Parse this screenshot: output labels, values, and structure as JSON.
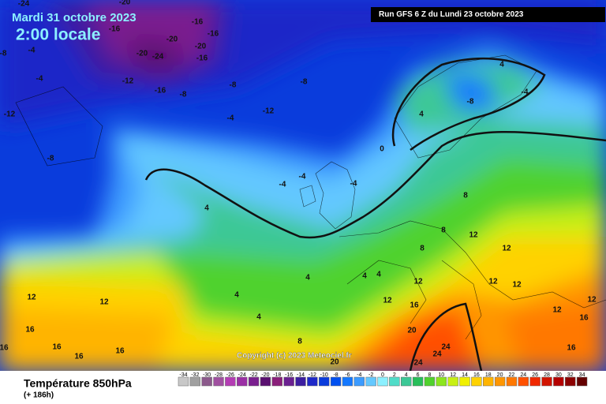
{
  "header": {
    "date": "Mardi 31 octobre 2023",
    "time": "2:00 locale",
    "run": "Run GFS 6 Z du Lundi 23 octobre 2023",
    "copyright": "Copyright (c) 2023 Meteociel.fr"
  },
  "footer": {
    "title": "Température 850hPa",
    "lead": "(+ 186h)"
  },
  "colorbar": {
    "ticks": [
      -34,
      -32,
      -30,
      -28,
      -26,
      -24,
      -22,
      -20,
      -18,
      -16,
      -14,
      -12,
      -10,
      -8,
      -6,
      -4,
      -2,
      0,
      2,
      4,
      6,
      8,
      10,
      12,
      14,
      16,
      18,
      20,
      22,
      24,
      26,
      28,
      30,
      32,
      34
    ],
    "colors": [
      "#c8c8c8",
      "#a0a0a0",
      "#8c5a8c",
      "#a050a0",
      "#b43cb4",
      "#9b2fa5",
      "#7a1f8f",
      "#5a1070",
      "#8a1f7a",
      "#6a2090",
      "#3c1ea0",
      "#1e28c8",
      "#0a3cdc",
      "#0050f0",
      "#1478ff",
      "#3c9bff",
      "#64c8ff",
      "#8cf0ff",
      "#50dcc8",
      "#3cc896",
      "#28be5a",
      "#50d22d",
      "#8ce61e",
      "#c8f014",
      "#f0f000",
      "#ffd200",
      "#ffb400",
      "#ff9600",
      "#ff7800",
      "#ff5000",
      "#f02800",
      "#d21400",
      "#b40000",
      "#8c0000",
      "#640000"
    ]
  },
  "contour_labels": [
    -24,
    -20,
    -16,
    -16,
    -16,
    -20,
    -20,
    -24,
    -20,
    -16,
    -4,
    -4,
    -8,
    -12,
    -16,
    -8,
    -12,
    -8,
    -4,
    -12,
    -8,
    -8,
    -4,
    -4,
    -4,
    4,
    4,
    -4,
    -8,
    4,
    0,
    8,
    8,
    12,
    12,
    8,
    4,
    4,
    4,
    4,
    4,
    12,
    12,
    12,
    12,
    16,
    12,
    12,
    12,
    16,
    20,
    24,
    24,
    24,
    16,
    16,
    16,
    16,
    16,
    8,
    20,
    16,
    12
  ]
}
